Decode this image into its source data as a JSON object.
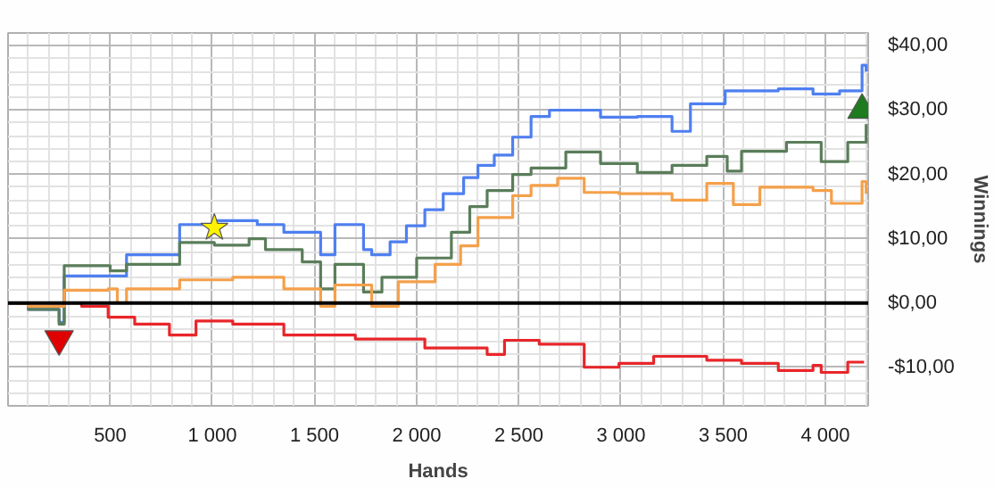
{
  "chart_data": {
    "type": "step",
    "xlabel": "Hands",
    "ylabel": "Winnings",
    "xlim": [
      0,
      4210
    ],
    "ylim": [
      -16,
      42
    ],
    "xticks": [
      {
        "value": 500,
        "label": "500"
      },
      {
        "value": 1000,
        "label": "1 000"
      },
      {
        "value": 1500,
        "label": "1 500"
      },
      {
        "value": 2000,
        "label": "2 000"
      },
      {
        "value": 2500,
        "label": "2 500"
      },
      {
        "value": 3000,
        "label": "3 000"
      },
      {
        "value": 3500,
        "label": "3 500"
      },
      {
        "value": 4000,
        "label": "4 000"
      }
    ],
    "yticks": [
      {
        "value": -10,
        "label": "-$10,00"
      },
      {
        "value": 0,
        "label": "$0,00"
      },
      {
        "value": 10,
        "label": "$10,00"
      },
      {
        "value": 20,
        "label": "$20,00"
      },
      {
        "value": 30,
        "label": "$30,00"
      },
      {
        "value": 40,
        "label": "$40,00"
      }
    ],
    "grid": true,
    "marker": "none",
    "line_style": "solid",
    "ref_lines": [
      {
        "axis": "y",
        "value": 0,
        "color": "#000000"
      }
    ],
    "series": [
      {
        "color": "#4f7ff0",
        "x": [
          0,
          100,
          250,
          275,
          580,
          840,
          1010,
          1220,
          1350,
          1530,
          1600,
          1740,
          1780,
          1870,
          1950,
          2040,
          2130,
          2230,
          2300,
          2380,
          2470,
          2560,
          2650,
          2900,
          3080,
          3250,
          3340,
          3510,
          3770,
          3940,
          4070,
          4180,
          4200
        ],
        "values": [
          0,
          -1,
          -3,
          4.2,
          7.5,
          12.2,
          12.8,
          12.2,
          11,
          7.5,
          12.2,
          8.3,
          7.5,
          9.5,
          12,
          14.5,
          17,
          19.5,
          21.4,
          23,
          25.8,
          29,
          30,
          28.9,
          29,
          26.7,
          31,
          33,
          33.3,
          32.5,
          33,
          37,
          36
        ]
      },
      {
        "color": "#5a7d5a",
        "x": [
          0,
          100,
          250,
          275,
          500,
          580,
          840,
          1010,
          1180,
          1260,
          1440,
          1530,
          1600,
          1740,
          1830,
          2000,
          2170,
          2260,
          2345,
          2470,
          2560,
          2730,
          2900,
          3080,
          3250,
          3420,
          3520,
          3590,
          3810,
          3980,
          4110,
          4200
        ],
        "values": [
          0,
          -1,
          -3.3,
          5.8,
          5,
          6,
          9.4,
          9,
          10,
          8.3,
          6.4,
          2.2,
          6,
          1.7,
          4,
          7,
          11,
          15,
          17.5,
          20,
          21,
          23.5,
          21.7,
          20.3,
          21.4,
          22.8,
          20.5,
          23.6,
          25,
          22,
          25,
          27.8
        ]
      },
      {
        "color": "#f5a04a",
        "x": [
          0,
          100,
          275,
          490,
          535,
          580,
          840,
          1100,
          1350,
          1530,
          1600,
          1780,
          1910,
          2090,
          2215,
          2300,
          2470,
          2560,
          2690,
          2820,
          2990,
          3250,
          3420,
          3550,
          3680,
          3940,
          4030,
          4180,
          4200
        ],
        "values": [
          0,
          -0.5,
          2,
          2.2,
          0,
          2.2,
          3.6,
          4,
          2.2,
          -0.5,
          2.8,
          -0.5,
          3.3,
          6,
          8.9,
          13.3,
          16.7,
          18.3,
          19.4,
          17.2,
          17,
          16,
          18.6,
          15.3,
          18,
          17.5,
          15.5,
          18.9,
          17
        ]
      },
      {
        "color": "#e8262a",
        "x": [
          0,
          360,
          490,
          620,
          790,
          920,
          1100,
          1350,
          1700,
          2040,
          2345,
          2430,
          2600,
          2820,
          2990,
          3160,
          3420,
          3590,
          3770,
          3940,
          3980,
          4110,
          4190
        ],
        "values": [
          0,
          -0.5,
          -2.2,
          -3.3,
          -5,
          -2.8,
          -3.3,
          -5,
          -5.6,
          -7,
          -8,
          -5.8,
          -6.4,
          -10,
          -9.4,
          -8.3,
          -8.9,
          -9.4,
          -10.5,
          -9.7,
          -10.8,
          -9.2,
          -9.2
        ]
      },
      {
        "type": "scatter",
        "marker": "triangle",
        "color": "#e00000",
        "x": [
          250
        ],
        "values": [
          -5.6
        ]
      },
      {
        "type": "scatter",
        "marker": "star",
        "color": "#fff200",
        "x": [
          1010
        ],
        "values": [
          11.7
        ]
      },
      {
        "type": "scatter",
        "marker": "triangle",
        "color": "#1e7b1e",
        "x": [
          4180
        ],
        "values": [
          30
        ]
      }
    ]
  }
}
